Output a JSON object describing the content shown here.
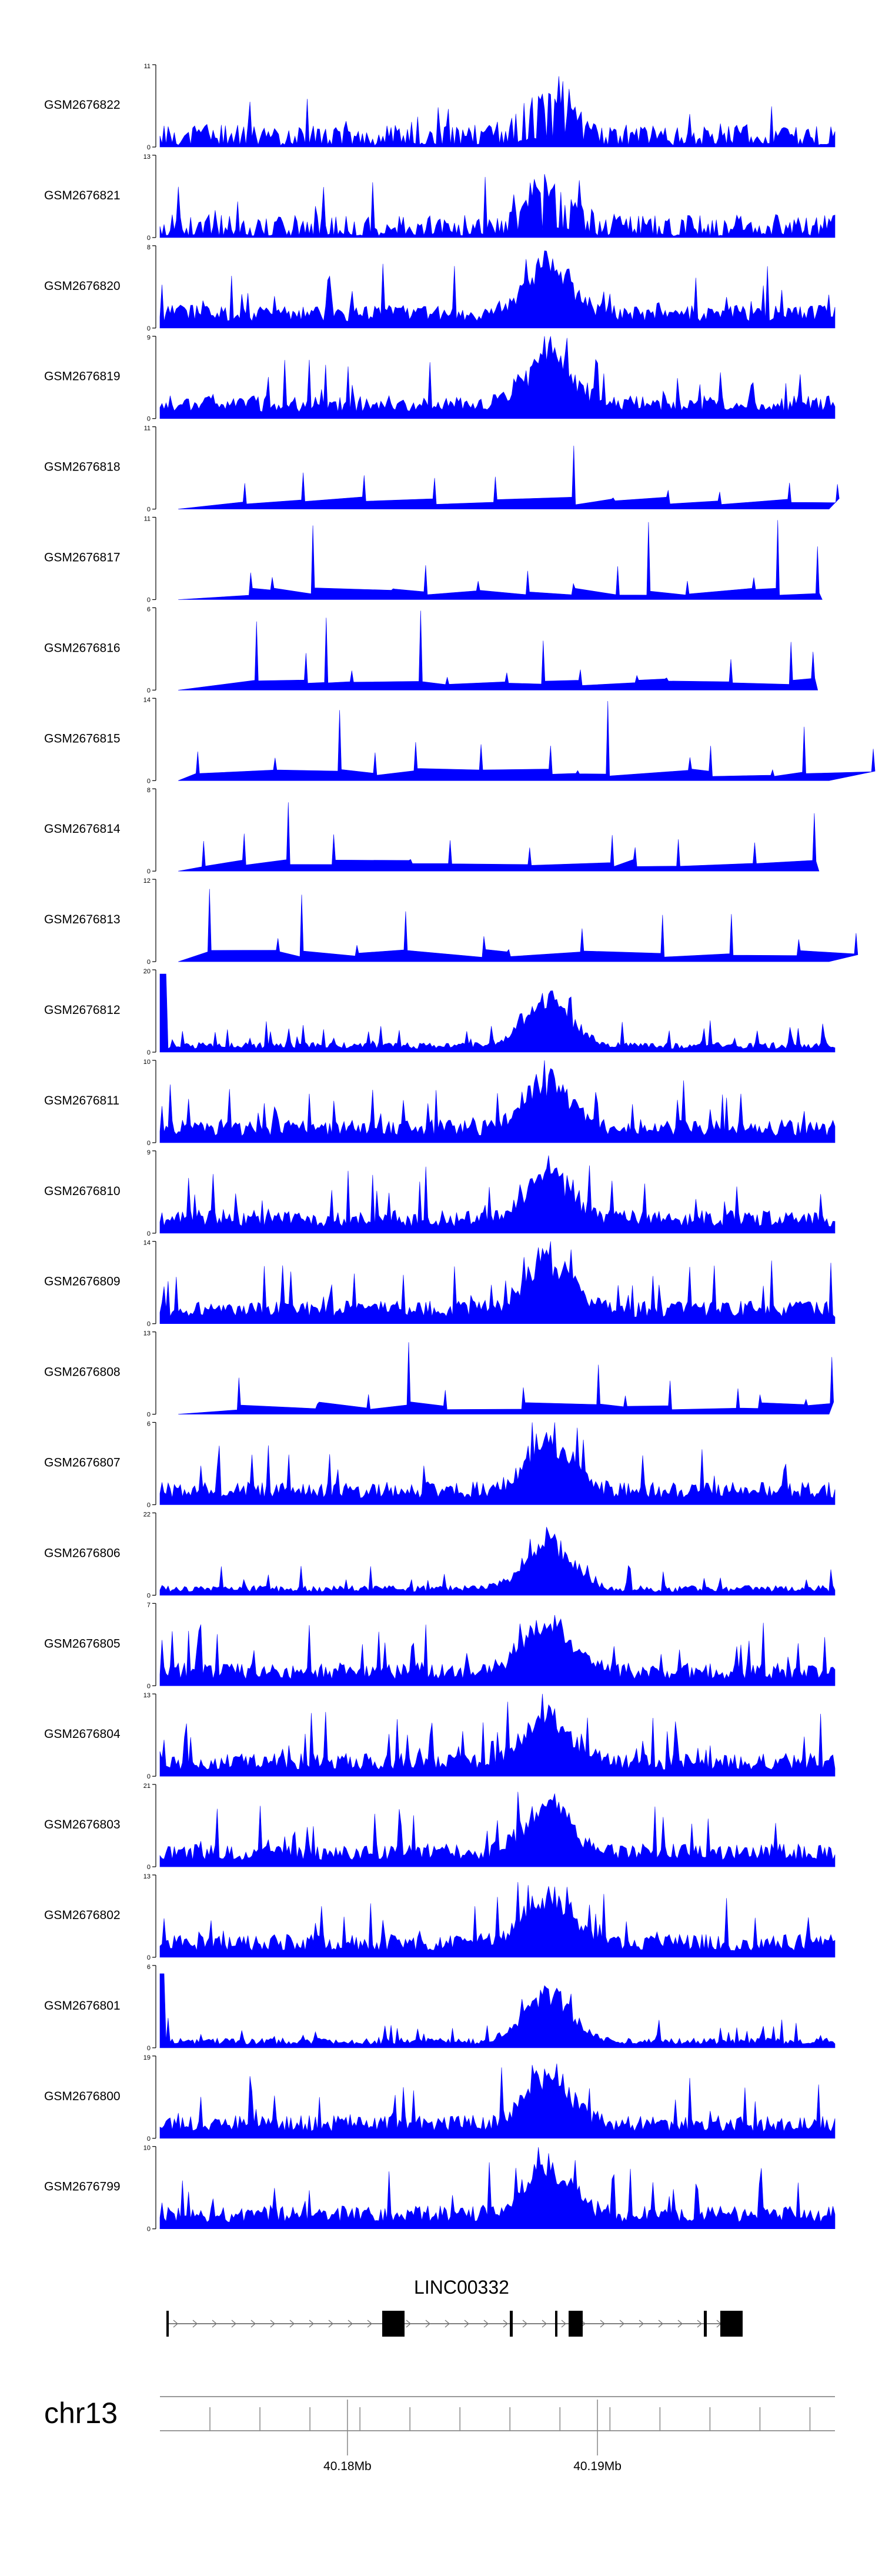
{
  "chart_data": {
    "type": "area",
    "title": "",
    "color": "#0000ff",
    "tracks": [
      {
        "name": "GSM2676822",
        "ymax": 11,
        "seed": 101,
        "style": "peaky"
      },
      {
        "name": "GSM2676821",
        "ymax": 13,
        "seed": 102,
        "style": "peaky"
      },
      {
        "name": "GSM2676820",
        "ymax": 8,
        "seed": 103,
        "style": "dense"
      },
      {
        "name": "GSM2676819",
        "ymax": 9,
        "seed": 104,
        "style": "dense"
      },
      {
        "name": "GSM2676818",
        "ymax": 11,
        "seed": 105,
        "style": "sparse"
      },
      {
        "name": "GSM2676817",
        "ymax": 11,
        "seed": 106,
        "style": "sparse"
      },
      {
        "name": "GSM2676816",
        "ymax": 6,
        "seed": 107,
        "style": "sparse"
      },
      {
        "name": "GSM2676815",
        "ymax": 14,
        "seed": 108,
        "style": "sparse"
      },
      {
        "name": "GSM2676814",
        "ymax": 8,
        "seed": 109,
        "style": "sparse"
      },
      {
        "name": "GSM2676813",
        "ymax": 12,
        "seed": 110,
        "style": "sparse"
      },
      {
        "name": "GSM2676812",
        "ymax": 20,
        "seed": 111,
        "style": "low"
      },
      {
        "name": "GSM2676811",
        "ymax": 10,
        "seed": 112,
        "style": "dense"
      },
      {
        "name": "GSM2676810",
        "ymax": 9,
        "seed": 113,
        "style": "dense"
      },
      {
        "name": "GSM2676809",
        "ymax": 14,
        "seed": 114,
        "style": "dense"
      },
      {
        "name": "GSM2676808",
        "ymax": 13,
        "seed": 115,
        "style": "sparse"
      },
      {
        "name": "GSM2676807",
        "ymax": 6,
        "seed": 116,
        "style": "dense"
      },
      {
        "name": "GSM2676806",
        "ymax": 22,
        "seed": 117,
        "style": "low"
      },
      {
        "name": "GSM2676805",
        "ymax": 7,
        "seed": 118,
        "style": "dense"
      },
      {
        "name": "GSM2676804",
        "ymax": 13,
        "seed": 119,
        "style": "dense"
      },
      {
        "name": "GSM2676803",
        "ymax": 21,
        "seed": 120,
        "style": "dense"
      },
      {
        "name": "GSM2676802",
        "ymax": 13,
        "seed": 121,
        "style": "dense"
      },
      {
        "name": "GSM2676801",
        "ymax": 6,
        "seed": 122,
        "style": "low"
      },
      {
        "name": "GSM2676800",
        "ymax": 19,
        "seed": 123,
        "style": "dense"
      },
      {
        "name": "GSM2676799",
        "ymax": 10,
        "seed": 124,
        "style": "dense"
      }
    ],
    "y_axis": {
      "min_label": "0"
    },
    "gene": {
      "name": "LINC00332"
    },
    "chromosome": "chr13",
    "x_axis": {
      "range_mb": [
        40.1725,
        40.1995
      ],
      "labelled_ticks": [
        {
          "value": 40.18,
          "label": "40.18Mb"
        },
        {
          "value": 40.19,
          "label": "40.19Mb"
        }
      ],
      "minor_ticks": [
        40.1745,
        40.1765,
        40.1785,
        40.1805,
        40.1825,
        40.1845,
        40.1865,
        40.1885,
        40.1905,
        40.1925,
        40.1945,
        40.1965,
        40.1985
      ]
    }
  }
}
